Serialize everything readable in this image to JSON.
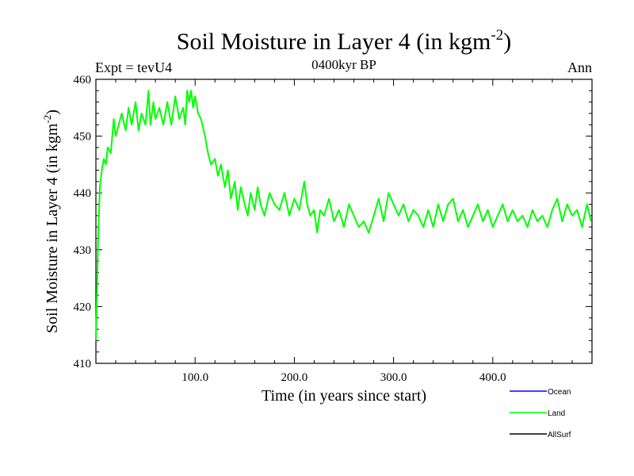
{
  "header": {
    "title_main": "Soil Moisture in Layer 4 (in kgm",
    "title_sup": "-2",
    "title_close": ")",
    "subtitle": "0400kyr BP",
    "left_label": "Expt = tevU4",
    "right_label": "Ann"
  },
  "axes": {
    "xlabel": "Time (in years since start)",
    "ylabel_main": "Soil Moisture in Layer 4 (in kgm",
    "ylabel_sup": "-2",
    "ylabel_close": ")"
  },
  "chart_data": {
    "type": "line",
    "title": "Soil Moisture in Layer 4 (in kgm-2)",
    "xlabel": "Time (in years since start)",
    "ylabel": "Soil Moisture in Layer 4 (in kgm-2)",
    "xlim": [
      0,
      500
    ],
    "ylim": [
      410,
      460
    ],
    "xticks": [
      100,
      200,
      300,
      400
    ],
    "xtick_labels": [
      "100.0",
      "200.0",
      "300.0",
      "400.0"
    ],
    "yticks": [
      410,
      420,
      430,
      440,
      450,
      460
    ],
    "ytick_labels": [
      "410",
      "420",
      "430",
      "440",
      "450",
      "460"
    ],
    "grid": false,
    "legend_position": "bottom-right, outside plot",
    "series": [
      {
        "name": "Ocean",
        "color": "#0000ff",
        "x": [],
        "y": []
      },
      {
        "name": "Land",
        "color": "#00ff00",
        "x": [
          0,
          1,
          2,
          3,
          4,
          6,
          8,
          10,
          12,
          15,
          18,
          20,
          23,
          26,
          30,
          33,
          36,
          40,
          43,
          46,
          50,
          53,
          55,
          58,
          60,
          64,
          68,
          72,
          76,
          80,
          84,
          88,
          90,
          92,
          94,
          96,
          98,
          100,
          103,
          106,
          110,
          113,
          116,
          120,
          123,
          126,
          130,
          133,
          136,
          140,
          143,
          146,
          150,
          153,
          156,
          160,
          163,
          166,
          170,
          175,
          180,
          185,
          190,
          195,
          200,
          205,
          210,
          213,
          216,
          220,
          223,
          226,
          230,
          235,
          240,
          245,
          250,
          255,
          260,
          265,
          270,
          275,
          280,
          285,
          290,
          295,
          300,
          305,
          310,
          315,
          320,
          325,
          330,
          335,
          340,
          345,
          350,
          355,
          360,
          365,
          370,
          375,
          380,
          385,
          390,
          395,
          400,
          405,
          410,
          415,
          420,
          425,
          430,
          435,
          440,
          445,
          450,
          455,
          460,
          465,
          470,
          475,
          480,
          485,
          490,
          495,
          499
        ],
        "y": [
          414,
          422,
          430,
          436,
          441,
          444,
          446,
          445,
          448,
          447,
          453,
          450,
          452,
          454,
          451,
          455,
          452,
          456,
          451,
          454,
          452,
          458,
          452,
          456,
          453,
          455,
          452,
          456,
          452,
          457,
          453,
          455,
          452,
          458,
          456,
          458,
          455,
          457,
          454,
          453,
          450,
          447,
          445,
          446,
          443,
          445,
          441,
          444,
          439,
          442,
          437,
          441,
          438,
          436,
          440,
          437,
          441,
          438,
          436,
          440,
          438,
          437,
          440,
          436,
          439,
          437,
          442,
          438,
          436,
          437,
          433,
          437,
          436,
          439,
          435,
          437,
          434,
          438,
          436,
          434,
          435,
          433,
          436,
          439,
          435,
          440,
          438,
          436,
          438,
          435,
          437,
          436,
          434,
          437,
          434,
          438,
          435,
          438,
          439,
          435,
          437,
          434,
          436,
          438,
          435,
          437,
          434,
          436,
          438,
          435,
          437,
          435,
          436,
          434,
          437,
          435,
          436,
          434,
          437,
          439,
          435,
          438,
          436,
          437,
          434,
          438,
          435
        ]
      },
      {
        "name": "AllSurf",
        "color": "#000000",
        "x": [],
        "y": []
      }
    ]
  }
}
